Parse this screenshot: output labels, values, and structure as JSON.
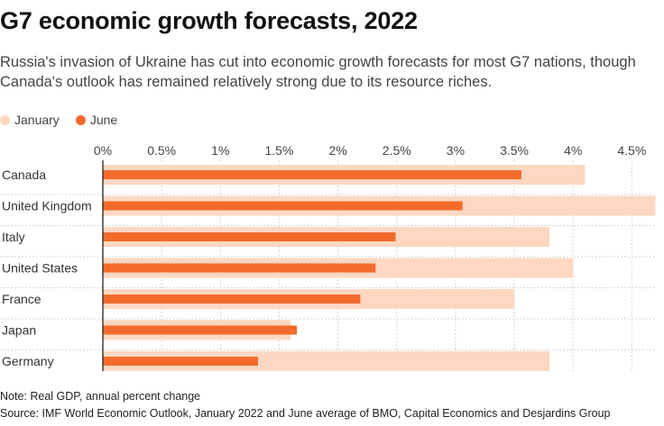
{
  "title": "G7 economic growth forecasts, 2022",
  "subtitle": "Russia's invasion of Ukraine has cut into economic growth forecasts for most G7 nations, though Canada's outlook has remained relatively strong due to its resource riches.",
  "colors": {
    "january": "#fdd7c2",
    "june": "#f26b2a",
    "grid": "#d6d6d6",
    "axis": "#222222"
  },
  "note": "Note: Real GDP, annual percent change",
  "source": "Source: IMF World Economic Outlook, January 2022 and June average of BMO, Capital Economics and Desjardins Group",
  "chart_data": {
    "type": "bar",
    "orientation": "horizontal",
    "categories": [
      "Canada",
      "United Kingdom",
      "Italy",
      "United States",
      "France",
      "Japan",
      "Germany"
    ],
    "series": [
      {
        "name": "January",
        "values": [
          4.1,
          4.7,
          3.8,
          4.0,
          3.5,
          1.6,
          3.8
        ]
      },
      {
        "name": "June",
        "values": [
          3.56,
          3.06,
          2.49,
          2.32,
          2.19,
          1.65,
          1.32
        ]
      }
    ],
    "xlim": [
      0,
      4.7
    ],
    "ticks": [
      0,
      0.5,
      1,
      1.5,
      2,
      2.5,
      3,
      3.5,
      4,
      4.5
    ],
    "tick_labels": [
      "0%",
      "0.5%",
      "1%",
      "1.5%",
      "2%",
      "2.5%",
      "3%",
      "3.5%",
      "4%",
      "4.5%"
    ],
    "legend": "top-left",
    "grid": true
  }
}
